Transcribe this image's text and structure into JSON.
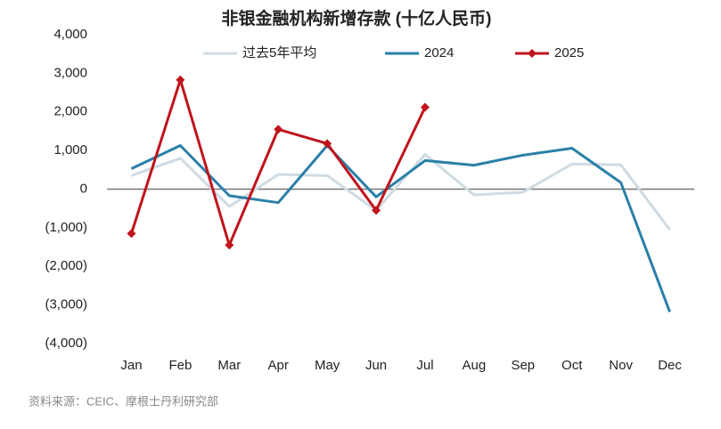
{
  "chart_data": {
    "type": "line",
    "title": "非银金融机构新增存款 (十亿人民币)",
    "categories": [
      "Jan",
      "Feb",
      "Mar",
      "Apr",
      "May",
      "Jun",
      "Jul",
      "Aug",
      "Sep",
      "Oct",
      "Nov",
      "Dec"
    ],
    "series": [
      {
        "name": "过去5年平均",
        "color": "#cfdbe3",
        "values": [
          350,
          800,
          -450,
          380,
          350,
          -550,
          900,
          -150,
          -80,
          650,
          630,
          -1050
        ]
      },
      {
        "name": "2024",
        "color": "#2a80a8",
        "values": [
          530,
          1130,
          -170,
          -350,
          1130,
          -200,
          740,
          620,
          880,
          1060,
          170,
          -3180
        ]
      },
      {
        "name": "2025",
        "color": "#c0141c",
        "marker": "diamond",
        "values": [
          -1150,
          2830,
          -1450,
          1550,
          1180,
          -550,
          2120,
          null,
          null,
          null,
          null,
          null
        ]
      }
    ],
    "ylim": [
      -4000,
      4000
    ],
    "yticks": [
      {
        "value": -4000,
        "label": "(4,000)"
      },
      {
        "value": -3000,
        "label": "(3,000)"
      },
      {
        "value": -2000,
        "label": "(2,000)"
      },
      {
        "value": -1000,
        "label": "(1,000)"
      },
      0,
      {
        "value": 1000,
        "label": "1,000"
      },
      {
        "value": 2000,
        "label": "2,000"
      },
      {
        "value": 3000,
        "label": "3,000"
      },
      {
        "value": 4000,
        "label": "4,000"
      }
    ],
    "grid": false,
    "legend": "top",
    "source": "资料来源：CEIC、摩根士丹利研究部"
  }
}
